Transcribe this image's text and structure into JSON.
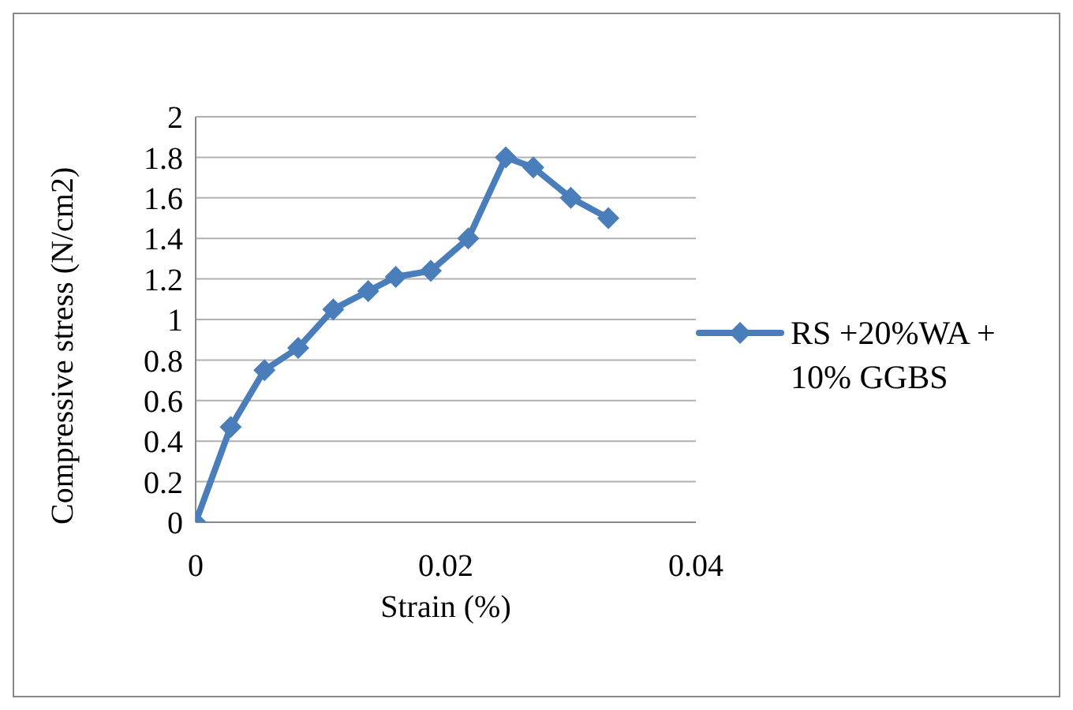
{
  "chart_data": {
    "type": "line",
    "xlabel": "Strain (%)",
    "ylabel": "Compressive stress (N/cm2)",
    "x": [
      0,
      0.0028,
      0.0055,
      0.0082,
      0.011,
      0.0138,
      0.016,
      0.0188,
      0.0218,
      0.0248,
      0.027,
      0.03,
      0.033
    ],
    "series": [
      {
        "name": "RS +20%WA + 10% GGBS",
        "color": "#4a7ebb",
        "values": [
          0,
          0.47,
          0.75,
          0.86,
          1.05,
          1.14,
          1.21,
          1.24,
          1.4,
          1.8,
          1.75,
          1.6,
          1.5
        ]
      }
    ],
    "xlim": [
      0,
      0.04
    ],
    "xticks": [
      0,
      0.02,
      0.04
    ],
    "ylim": [
      0,
      2
    ],
    "yticks": [
      0,
      0.2,
      0.4,
      0.6,
      0.8,
      1,
      1.2,
      1.4,
      1.6,
      1.8,
      2
    ],
    "grid": "y",
    "legend": "right",
    "marker": "diamond",
    "line_style": "solid"
  }
}
